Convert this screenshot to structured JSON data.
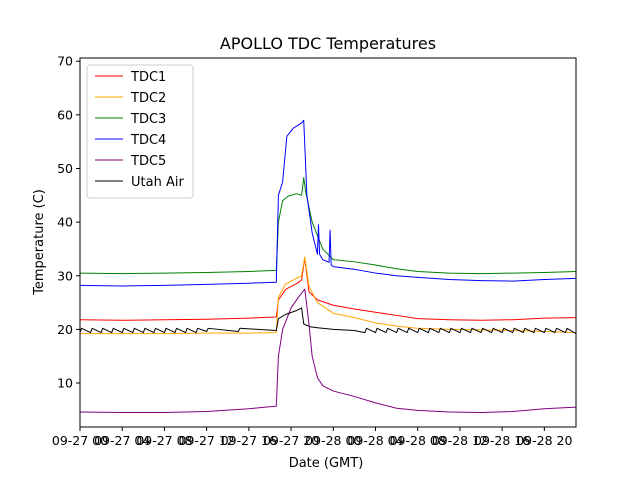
{
  "chart_data": {
    "type": "line",
    "title": "APOLLO TDC Temperatures",
    "xlabel": "Date (GMT)",
    "ylabel": "Temperature (C)",
    "xlim": [
      0,
      47
    ],
    "ylim": [
      1.8,
      70.6
    ],
    "x_unit": "hours since 09-27 00:00 GMT",
    "x_tick_values": [
      0,
      4,
      8,
      12,
      16,
      20,
      24,
      28,
      32,
      36,
      40,
      44
    ],
    "x_tick_labels": [
      "09-27 00",
      "09-27 04",
      "09-27 08",
      "09-27 12",
      "09-27 16",
      "09-27 20",
      "09-28 00",
      "09-28 04",
      "09-28 08",
      "09-28 12",
      "09-28 16",
      "09-28 20"
    ],
    "y_tick_values": [
      10,
      20,
      30,
      40,
      50,
      60,
      70
    ],
    "y_tick_labels": [
      "10",
      "20",
      "30",
      "40",
      "50",
      "60",
      "70"
    ],
    "legend_position": "top-left",
    "series": [
      {
        "name": "TDC1",
        "color": "#ff0000",
        "x": [
          0,
          4,
          8,
          12,
          16,
          18.6,
          18.8,
          19.5,
          20.5,
          21.0,
          21.3,
          21.7,
          22.5,
          24,
          26,
          28,
          30,
          32,
          35,
          38,
          41,
          44,
          47
        ],
        "y": [
          21.8,
          21.7,
          21.8,
          21.9,
          22.1,
          22.3,
          25.5,
          27.5,
          28.5,
          29.2,
          33.3,
          27.0,
          25.5,
          24.5,
          23.8,
          23.2,
          22.6,
          22.0,
          21.8,
          21.7,
          21.8,
          22.1,
          22.2
        ]
      },
      {
        "name": "TDC2",
        "color": "#ffa500",
        "x": [
          0,
          4,
          8,
          12,
          16,
          18.6,
          18.8,
          19.5,
          20.5,
          21.0,
          21.3,
          21.7,
          22.5,
          24,
          26,
          28,
          30,
          32,
          35,
          38,
          41,
          44,
          47
        ],
        "y": [
          19.2,
          19.2,
          19.2,
          19.3,
          19.3,
          19.4,
          26.0,
          28.5,
          29.5,
          30.0,
          33.5,
          28.0,
          25.0,
          23.0,
          22.2,
          21.2,
          20.6,
          20.2,
          20.0,
          19.9,
          19.8,
          19.6,
          19.4
        ]
      },
      {
        "name": "TDC3",
        "color": "#008000",
        "x": [
          0,
          4,
          8,
          12,
          16,
          18.6,
          18.8,
          19.2,
          19.7,
          20.5,
          21.0,
          21.2,
          21.4,
          22.0,
          23.0,
          24.0,
          26,
          28,
          30,
          32,
          35,
          38,
          41,
          44,
          47
        ],
        "y": [
          30.5,
          30.4,
          30.5,
          30.6,
          30.8,
          31.0,
          40.0,
          44.0,
          44.8,
          45.3,
          45.0,
          48.3,
          45.5,
          40.0,
          35.0,
          33.0,
          32.6,
          32.0,
          31.3,
          30.8,
          30.5,
          30.4,
          30.5,
          30.6,
          30.8
        ]
      },
      {
        "name": "TDC4",
        "color": "#0000ff",
        "x": [
          0,
          4,
          8,
          12,
          16,
          18.6,
          18.8,
          19.2,
          19.6,
          20.2,
          21.0,
          21.2,
          21.5,
          22.0,
          22.5,
          22.6,
          22.7,
          23.0,
          23.6,
          23.7,
          23.8,
          24.0,
          26,
          28,
          30,
          32,
          35,
          38,
          41,
          44,
          47
        ],
        "y": [
          28.2,
          28.1,
          28.2,
          28.4,
          28.6,
          28.8,
          45.0,
          47.5,
          56.0,
          57.5,
          58.5,
          59.0,
          45.0,
          38.0,
          34.0,
          39.5,
          34.0,
          33.0,
          32.5,
          38.5,
          32.0,
          31.7,
          31.2,
          30.5,
          30.0,
          29.7,
          29.3,
          29.1,
          29.0,
          29.3,
          29.5
        ]
      },
      {
        "name": "TDC5",
        "color": "#800080",
        "x": [
          0,
          4,
          8,
          12,
          16,
          18.6,
          18.8,
          19.2,
          20.0,
          20.7,
          21.3,
          21.7,
          22.0,
          22.5,
          23.0,
          24.0,
          26,
          28,
          30,
          32,
          35,
          38,
          41,
          44,
          47
        ],
        "y": [
          4.6,
          4.5,
          4.5,
          4.7,
          5.2,
          5.7,
          15.0,
          20.0,
          24.0,
          26.0,
          27.5,
          21.0,
          15.0,
          11.0,
          9.5,
          8.5,
          7.5,
          6.3,
          5.3,
          4.9,
          4.6,
          4.5,
          4.7,
          5.2,
          5.5
        ]
      },
      {
        "name": "Utah Air",
        "color": "#000000",
        "x": [
          0,
          0.15,
          1.0,
          1.15,
          2.0,
          2.15,
          3.0,
          3.15,
          4.0,
          4.15,
          5.0,
          5.15,
          6.0,
          6.15,
          7.0,
          7.15,
          8.0,
          8.15,
          9.0,
          9.15,
          10.0,
          10.15,
          11.0,
          11.15,
          12.0,
          12.15,
          15.0,
          15.15,
          18.6,
          18.8,
          19.5,
          20.5,
          21.0,
          21.2,
          21.8,
          22.5,
          24,
          26,
          27.0,
          27.15,
          28.0,
          28.15,
          29.0,
          29.15,
          30.0,
          30.15,
          31.0,
          31.15,
          32.0,
          32.15,
          33.0,
          33.15,
          34.0,
          34.15,
          35.0,
          35.15,
          36.0,
          36.15,
          37.0,
          37.15,
          38.0,
          38.15,
          39.0,
          39.15,
          40.0,
          40.15,
          41.0,
          41.15,
          42.0,
          42.15,
          43.0,
          43.15,
          44.0,
          44.15,
          45.0,
          45.15,
          46.0,
          46.15,
          47
        ],
        "y": [
          19.4,
          20.2,
          19.4,
          20.2,
          19.4,
          20.2,
          19.4,
          20.2,
          19.4,
          20.2,
          19.4,
          20.2,
          19.4,
          20.2,
          19.4,
          20.2,
          19.4,
          20.2,
          19.4,
          20.2,
          19.4,
          20.2,
          19.4,
          20.2,
          19.6,
          20.2,
          19.6,
          20.2,
          19.8,
          22.0,
          22.8,
          23.5,
          24.0,
          21.0,
          20.5,
          20.3,
          20.0,
          19.8,
          19.4,
          20.2,
          19.4,
          20.2,
          19.4,
          20.2,
          19.4,
          20.2,
          19.4,
          20.2,
          19.4,
          20.2,
          19.4,
          20.2,
          19.4,
          20.2,
          19.4,
          20.2,
          19.4,
          20.2,
          19.4,
          20.2,
          19.4,
          20.2,
          19.4,
          20.2,
          19.4,
          20.2,
          19.4,
          20.2,
          19.4,
          20.2,
          19.4,
          20.2,
          19.4,
          20.2,
          19.4,
          20.2,
          19.4,
          20.2,
          19.2
        ]
      }
    ]
  }
}
